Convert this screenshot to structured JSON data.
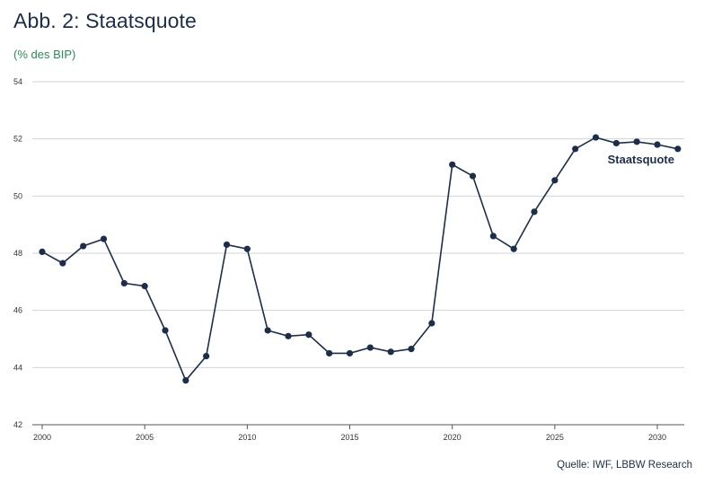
{
  "title": "Abb. 2: Staatsquote",
  "subtitle": "(% des BIP)",
  "source": "Quelle: IWF, LBBW Research",
  "colors": {
    "line": "#1c2e4a",
    "title": "#1c2e4a",
    "subtitle": "#2a8a5a",
    "grid": "#d3d3d3"
  },
  "chart_data": {
    "type": "line",
    "title": "Abb. 2: Staatsquote",
    "subtitle": "(% des BIP)",
    "xlabel": "",
    "ylabel": "",
    "xlim": [
      2000,
      2031
    ],
    "ylim": [
      42,
      54
    ],
    "x_ticks": [
      2000,
      2005,
      2010,
      2015,
      2020,
      2025,
      2030
    ],
    "y_ticks": [
      42,
      44,
      46,
      48,
      50,
      52,
      54
    ],
    "grid": true,
    "legend": "none",
    "series": [
      {
        "name": "Staatsquote",
        "x": [
          2000,
          2001,
          2002,
          2003,
          2004,
          2005,
          2006,
          2007,
          2008,
          2009,
          2010,
          2011,
          2012,
          2013,
          2014,
          2015,
          2016,
          2017,
          2018,
          2019,
          2020,
          2021,
          2022,
          2023,
          2024,
          2025,
          2026,
          2027,
          2028,
          2029,
          2030,
          2031
        ],
        "values": [
          48.05,
          47.65,
          48.25,
          48.5,
          46.95,
          46.85,
          45.3,
          43.55,
          44.4,
          48.3,
          48.15,
          45.3,
          45.1,
          45.15,
          44.5,
          44.5,
          44.7,
          44.55,
          44.65,
          45.55,
          51.1,
          50.7,
          48.6,
          48.15,
          49.45,
          50.55,
          51.65,
          52.05,
          51.85,
          51.9,
          51.8,
          51.65
        ]
      }
    ]
  }
}
